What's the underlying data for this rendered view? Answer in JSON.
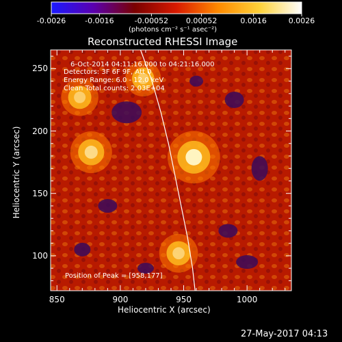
{
  "colorbar": {
    "tick_labels": [
      "-0.0026",
      "-0.0016",
      "-0.00052",
      "0.00052",
      "0.0016",
      "0.0026"
    ],
    "tick_values": [
      -0.0026,
      -0.0016,
      -0.00052,
      0.00052,
      0.0016,
      0.0026
    ],
    "range": [
      -0.0026,
      0.0026
    ],
    "unit_label": "(photons cm⁻² s⁻¹ asec⁻²)",
    "colormap": [
      "#1a1aff",
      "#5a00b0",
      "#7a0000",
      "#d81a00",
      "#ff8a00",
      "#ffd23a",
      "#ffffff"
    ]
  },
  "plot": {
    "title": "Reconstructed RHESSI Image",
    "annotations": {
      "time_range": "6-Oct-2014 04:11:16.000 to 04:21:16.000",
      "detectors": "Detectors: 3F 6F 9F, Att 0",
      "energy": "Energy Range: 6.0 - 12.0 keV",
      "clean": "Clean    Total counts: 2.03E+04",
      "peak": "Position of Peak = [958,177]"
    },
    "footer_date": "27-May-2017 04:13"
  },
  "chart_data": {
    "type": "heatmap",
    "title": "Reconstructed RHESSI Image",
    "xlabel": "Heliocentric X (arcsec)",
    "ylabel": "Heliocentric Y (arcsec)",
    "xlim": [
      845,
      1035
    ],
    "ylim": [
      72,
      265
    ],
    "x_ticks": [
      850,
      900,
      950,
      1000
    ],
    "y_ticks": [
      100,
      150,
      200,
      250
    ],
    "x_tick_labels": [
      "850",
      "900",
      "950",
      "1000"
    ],
    "y_tick_labels": [
      "100",
      "150",
      "200",
      "250"
    ],
    "peak": [
      958,
      177
    ],
    "limb_curve": [
      [
        916,
        265
      ],
      [
        925,
        240
      ],
      [
        932,
        215
      ],
      [
        938,
        190
      ],
      [
        943,
        165
      ],
      [
        948,
        140
      ],
      [
        953,
        115
      ],
      [
        957,
        90
      ],
      [
        959,
        72
      ]
    ],
    "sources": [
      {
        "x": 958,
        "y": 179,
        "intensity": 1.0
      },
      {
        "x": 877,
        "y": 183,
        "intensity": 0.65
      },
      {
        "x": 868,
        "y": 227,
        "intensity": 0.5
      },
      {
        "x": 946,
        "y": 102,
        "intensity": 0.55
      },
      {
        "x": 918,
        "y": 242,
        "intensity": 0.45
      }
    ],
    "grid": false
  }
}
